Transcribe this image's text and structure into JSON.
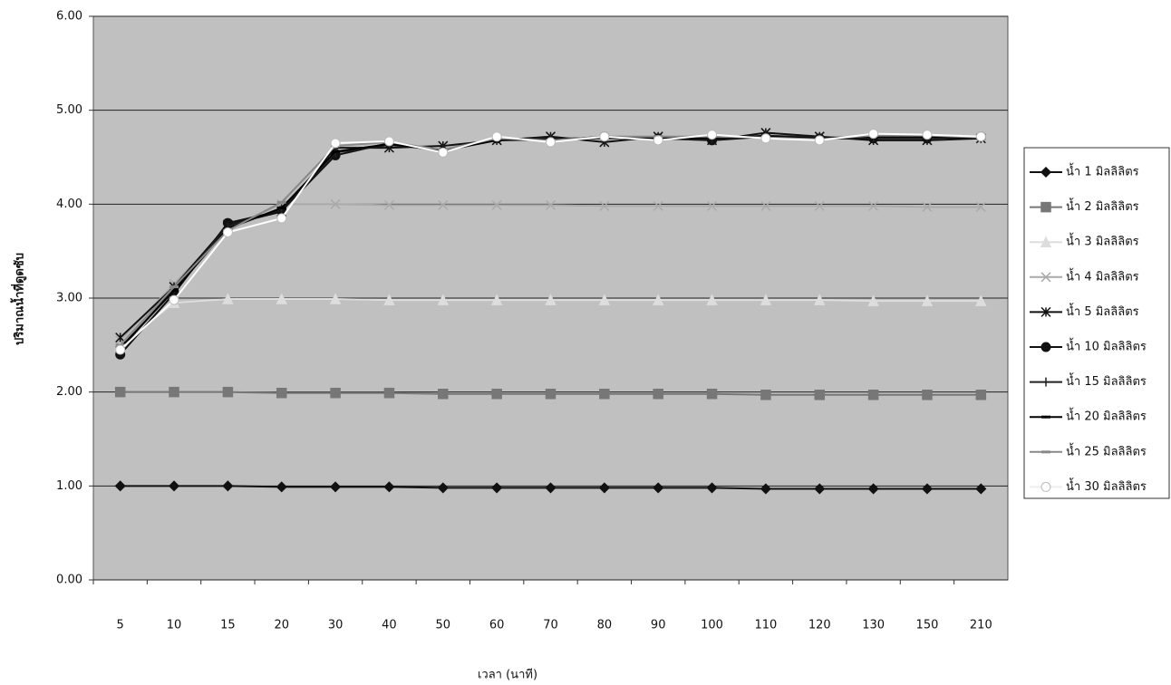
{
  "chart_data": {
    "type": "line",
    "x_label": "เวลา (นาที)",
    "y_label": "ปริมาณน้ำที่ดูดซับ",
    "categories": [
      "5",
      "10",
      "15",
      "20",
      "30",
      "40",
      "50",
      "60",
      "70",
      "80",
      "90",
      "100",
      "110",
      "120",
      "130",
      "150",
      "210"
    ],
    "ylim": [
      0,
      6
    ],
    "yticks": [
      {
        "value": 0,
        "label": "0.00"
      },
      {
        "value": 1,
        "label": "1.00"
      },
      {
        "value": 2,
        "label": "2.00"
      },
      {
        "value": 3,
        "label": "3.00"
      },
      {
        "value": 4,
        "label": "4.00"
      },
      {
        "value": 5,
        "label": "5.00"
      },
      {
        "value": 6,
        "label": "6.00"
      }
    ],
    "grid": true,
    "legend": "right",
    "series": [
      {
        "name": "น้ำ 1 มิลลิลิตร",
        "color": "#111111",
        "marker": "diamond",
        "values": [
          1.0,
          1.0,
          1.0,
          0.99,
          0.99,
          0.99,
          0.98,
          0.98,
          0.98,
          0.98,
          0.98,
          0.98,
          0.97,
          0.97,
          0.97,
          0.97,
          0.97
        ]
      },
      {
        "name": "น้ำ 2 มิลลิลิตร",
        "color": "#777777",
        "marker": "square",
        "values": [
          2.0,
          2.0,
          2.0,
          1.99,
          1.99,
          1.99,
          1.98,
          1.98,
          1.98,
          1.98,
          1.98,
          1.98,
          1.97,
          1.97,
          1.97,
          1.97,
          1.97
        ]
      },
      {
        "name": "น้ำ 3 มิลลิลิตร",
        "color": "#dddddd",
        "marker": "triangle",
        "values": [
          2.5,
          2.95,
          2.99,
          2.99,
          2.99,
          2.98,
          2.98,
          2.98,
          2.98,
          2.98,
          2.98,
          2.98,
          2.98,
          2.98,
          2.97,
          2.97,
          2.97
        ]
      },
      {
        "name": "น้ำ 4 มิลลิลิตร",
        "color": "#aaaaaa",
        "marker": "x",
        "values": [
          2.55,
          3.15,
          3.75,
          4.0,
          4.0,
          3.99,
          3.99,
          3.99,
          3.99,
          3.98,
          3.98,
          3.98,
          3.98,
          3.98,
          3.98,
          3.97,
          3.97
        ]
      },
      {
        "name": "น้ำ 5 มิลลิลิตร",
        "color": "#111111",
        "marker": "star",
        "values": [
          2.58,
          3.12,
          3.78,
          3.92,
          4.6,
          4.6,
          4.62,
          4.68,
          4.72,
          4.66,
          4.72,
          4.68,
          4.76,
          4.72,
          4.68,
          4.68,
          4.7
        ]
      },
      {
        "name": "น้ำ 10 มิลลิลิตร",
        "color": "#111111",
        "marker": "circle",
        "values": [
          2.4,
          3.05,
          3.8,
          3.93,
          4.52,
          4.65,
          4.56,
          4.7,
          4.68,
          4.72,
          4.7,
          4.68,
          4.72,
          4.7,
          4.7,
          4.7,
          4.72
        ]
      },
      {
        "name": "น้ำ 15 มิลลิลิตร",
        "color": "#222222",
        "marker": "plus",
        "values": [
          2.45,
          3.1,
          3.76,
          3.95,
          4.55,
          4.63,
          4.58,
          4.69,
          4.7,
          4.7,
          4.71,
          4.7,
          4.73,
          4.71,
          4.71,
          4.71,
          4.71
        ]
      },
      {
        "name": "น้ำ 20 มิลลิลิตร",
        "color": "#000000",
        "marker": "dash",
        "values": [
          2.47,
          3.08,
          3.74,
          3.96,
          4.56,
          4.64,
          4.57,
          4.68,
          4.69,
          4.71,
          4.7,
          4.71,
          4.72,
          4.7,
          4.72,
          4.72,
          4.7
        ]
      },
      {
        "name": "น้ำ 25 มิลลิลิตร",
        "color": "#888888",
        "marker": "dash",
        "values": [
          2.5,
          3.12,
          3.72,
          4.02,
          4.62,
          4.66,
          4.58,
          4.7,
          4.68,
          4.72,
          4.72,
          4.72,
          4.71,
          4.69,
          4.73,
          4.73,
          4.71
        ]
      },
      {
        "name": "น้ำ 30 มิลลิลิตร",
        "color": "#ffffff",
        "marker": "circle",
        "values": [
          2.45,
          2.98,
          3.7,
          3.85,
          4.65,
          4.67,
          4.55,
          4.72,
          4.66,
          4.72,
          4.68,
          4.74,
          4.7,
          4.68,
          4.75,
          4.74,
          4.72
        ]
      }
    ]
  }
}
